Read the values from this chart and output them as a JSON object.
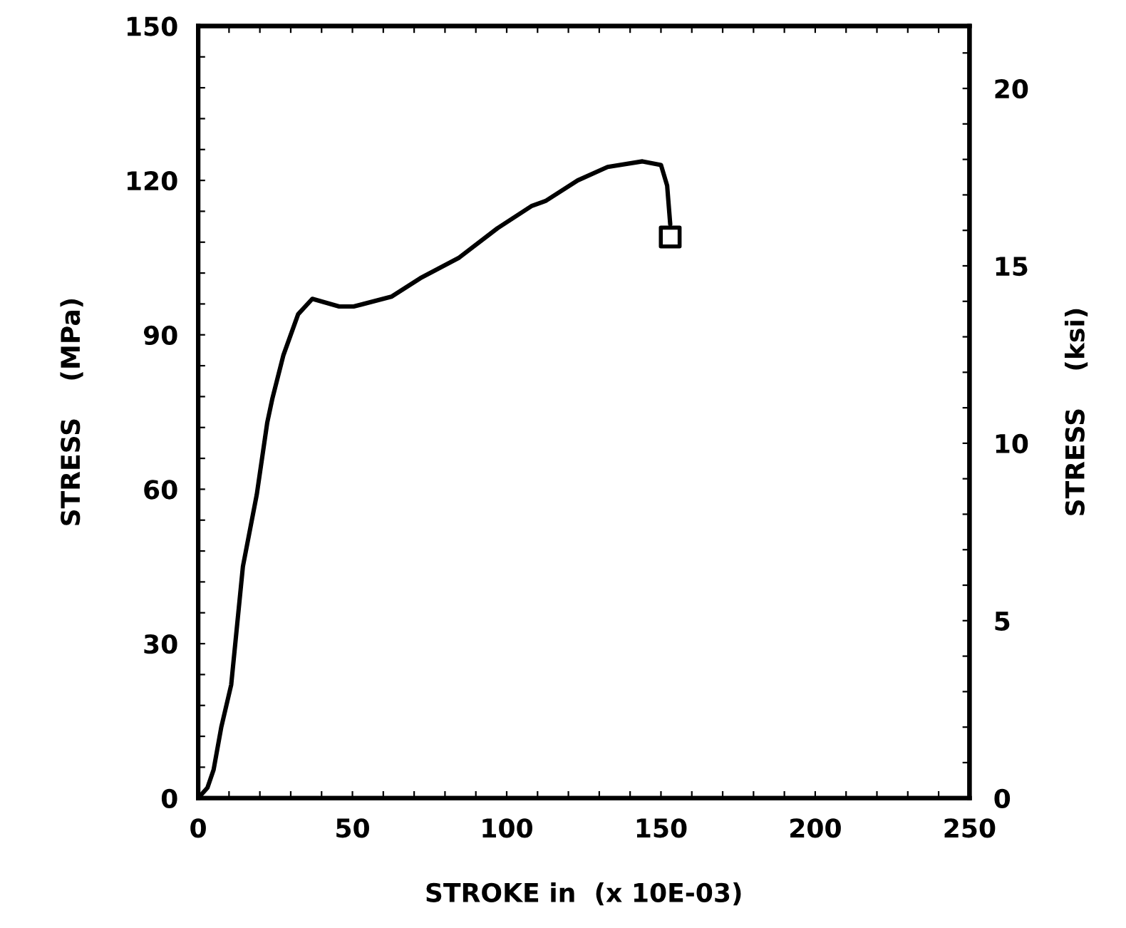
{
  "chart_data": {
    "type": "line",
    "xlabel": "STROKE in  (x 10E-03)",
    "ylabel": "STRESS    (MPa)",
    "y2label": "STRESS    (ksi)",
    "xlim": [
      0,
      250
    ],
    "ylim": [
      0,
      150
    ],
    "y2lim": [
      0,
      21.76
    ],
    "xticks": [
      0,
      {
        "value": 10,
        "label": null
      },
      {
        "value": 20,
        "label": null
      },
      {
        "value": 30,
        "label": null
      },
      {
        "value": 40,
        "label": null
      },
      50,
      {
        "value": 60,
        "label": null
      },
      {
        "value": 70,
        "label": null
      },
      {
        "value": 80,
        "label": null
      },
      {
        "value": 90,
        "label": null
      },
      100,
      {
        "value": 110,
        "label": null
      },
      {
        "value": 120,
        "label": null
      },
      {
        "value": 130,
        "label": null
      },
      {
        "value": 140,
        "label": null
      },
      150,
      {
        "value": 160,
        "label": null
      },
      {
        "value": 170,
        "label": null
      },
      {
        "value": 180,
        "label": null
      },
      {
        "value": 190,
        "label": null
      },
      200,
      {
        "value": 210,
        "label": null
      },
      {
        "value": 220,
        "label": null
      },
      {
        "value": 230,
        "label": null
      },
      {
        "value": 240,
        "label": null
      },
      250
    ],
    "yticks": [
      0,
      {
        "value": 6,
        "label": null
      },
      {
        "value": 12,
        "label": null
      },
      {
        "value": 18,
        "label": null
      },
      {
        "value": 24,
        "label": null
      },
      30,
      {
        "value": 36,
        "label": null
      },
      {
        "value": 42,
        "label": null
      },
      {
        "value": 48,
        "label": null
      },
      {
        "value": 54,
        "label": null
      },
      60,
      {
        "value": 66,
        "label": null
      },
      {
        "value": 72,
        "label": null
      },
      {
        "value": 78,
        "label": null
      },
      {
        "value": 84,
        "label": null
      },
      90,
      {
        "value": 96,
        "label": null
      },
      {
        "value": 102,
        "label": null
      },
      {
        "value": 108,
        "label": null
      },
      {
        "value": 114,
        "label": null
      },
      120,
      {
        "value": 126,
        "label": null
      },
      {
        "value": 132,
        "label": null
      },
      {
        "value": 138,
        "label": null
      },
      {
        "value": 144,
        "label": null
      },
      150
    ],
    "y2ticks": [
      0,
      {
        "value": 1,
        "label": null
      },
      {
        "value": 2,
        "label": null
      },
      {
        "value": 3,
        "label": null
      },
      {
        "value": 4,
        "label": null
      },
      5,
      {
        "value": 6,
        "label": null
      },
      {
        "value": 7,
        "label": null
      },
      {
        "value": 8,
        "label": null
      },
      {
        "value": 9,
        "label": null
      },
      10,
      {
        "value": 11,
        "label": null
      },
      {
        "value": 12,
        "label": null
      },
      {
        "value": 13,
        "label": null
      },
      {
        "value": 14,
        "label": null
      },
      15,
      {
        "value": 16,
        "label": null
      },
      {
        "value": 17,
        "label": null
      },
      {
        "value": 18,
        "label": null
      },
      {
        "value": 19,
        "label": null
      },
      20,
      {
        "value": 21,
        "label": null
      }
    ],
    "grid": false,
    "legend": false,
    "line_style": "solid",
    "series": [
      {
        "color": "#000000",
        "marker": "none",
        "x": [
          0,
          3,
          5,
          7.5,
          10.7,
          14.5,
          19,
          22.4,
          24,
          27.6,
          32.4,
          37,
          45.7,
          50.4,
          62.6,
          72,
          84.6,
          97,
          108,
          112.6,
          123,
          132.7,
          144,
          150,
          152,
          153
        ],
        "values": [
          0,
          2,
          5.5,
          13.8,
          22,
          45,
          59,
          73,
          77.5,
          86,
          94,
          97,
          95.5,
          95.5,
          97.4,
          101,
          105,
          110.7,
          115,
          116,
          120,
          122.6,
          123.7,
          123,
          119,
          111.5
        ]
      },
      {
        "type": "scatter",
        "color": "#000000",
        "marker": "square",
        "x": [
          153
        ],
        "values": [
          109
        ]
      }
    ]
  }
}
